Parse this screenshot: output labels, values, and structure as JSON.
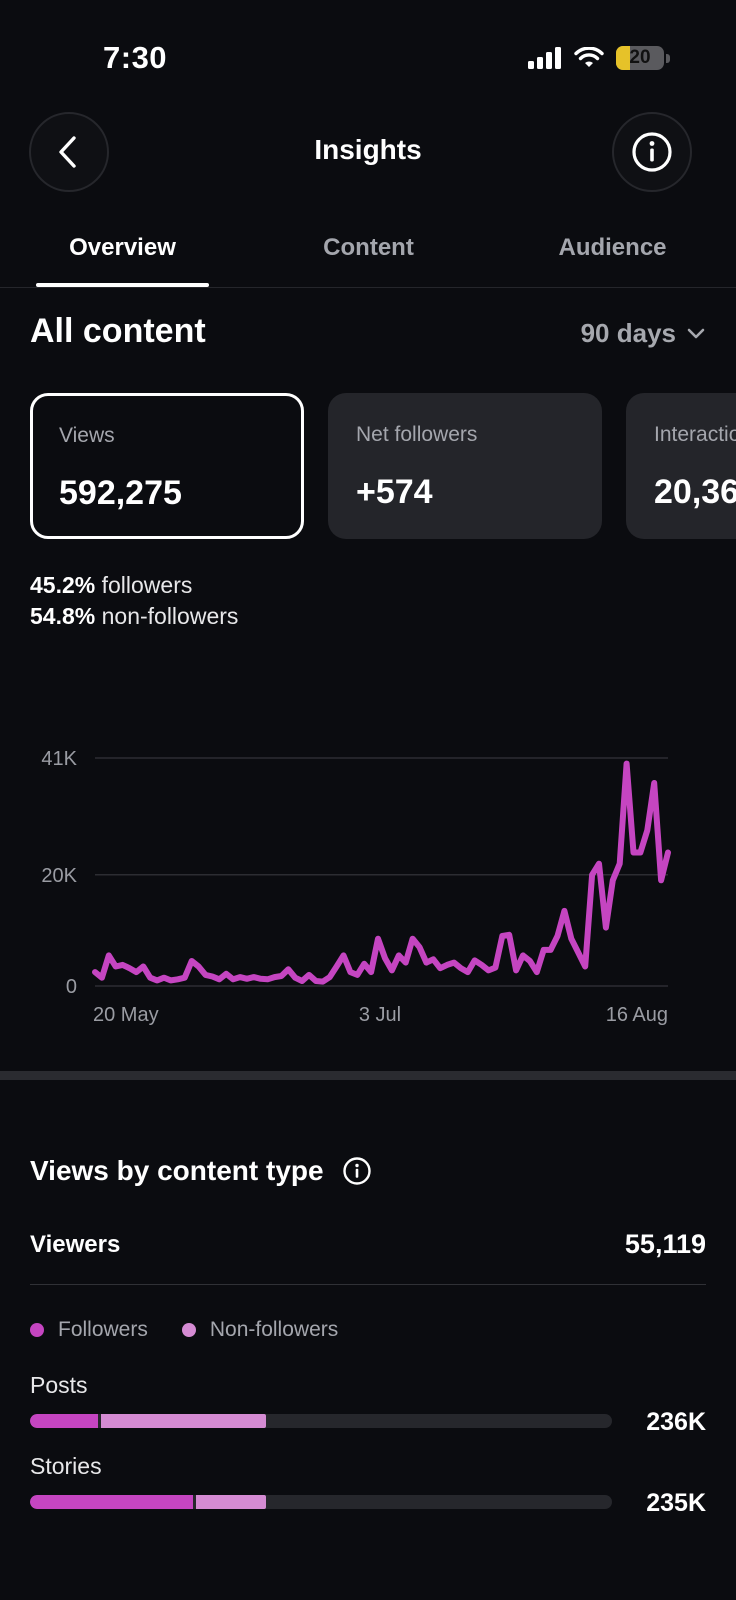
{
  "status_bar": {
    "time": "7:30",
    "battery": "20"
  },
  "nav": {
    "title": "Insights"
  },
  "tabs": [
    {
      "label": "Overview",
      "active": true
    },
    {
      "label": "Content",
      "active": false
    },
    {
      "label": "Audience",
      "active": false
    }
  ],
  "section": {
    "title": "All content",
    "range": "90 days"
  },
  "metrics": [
    {
      "label": "Views",
      "value": "592,275",
      "selected": true
    },
    {
      "label": "Net followers",
      "value": "+574",
      "selected": false
    },
    {
      "label": "Interactions",
      "value": "20,36",
      "selected": false
    }
  ],
  "split": {
    "followers_pct": "45.2%",
    "followers_label": "followers",
    "nonfollowers_pct": "54.8%",
    "nonfollowers_label": "non-followers"
  },
  "chart_data": {
    "type": "line",
    "x_tick_labels": [
      "20 May",
      "3 Jul",
      "16 Aug"
    ],
    "y_tick_labels": [
      "41K",
      "20K",
      "0"
    ],
    "ylim": [
      0,
      41000
    ],
    "grid": true,
    "color": "#c545c1",
    "series": [
      {
        "values": [
          2500,
          1500,
          5500,
          3500,
          3800,
          3200,
          2500,
          3500,
          1500,
          1000,
          1500,
          1000,
          1200,
          1500,
          4500,
          3500,
          2000,
          1700,
          1200,
          2200,
          1200,
          1600,
          1300,
          1600,
          1300,
          1200,
          1600,
          1800,
          3000,
          1500,
          900,
          2000,
          900,
          800,
          1600,
          3500,
          5500,
          2500,
          2000,
          4000,
          2500,
          8500,
          5000,
          2800,
          5500,
          4200,
          8500,
          7000,
          4200,
          4800,
          3200,
          3800,
          4200,
          3200,
          2500,
          4600,
          3800,
          2800,
          3300,
          9000,
          9200,
          2800,
          5500,
          4500,
          2500,
          6500,
          6500,
          9000,
          13500,
          8500,
          6000,
          3500,
          20000,
          22000,
          10500,
          19000,
          22000,
          40000,
          24000,
          24000,
          28000,
          36500,
          19000,
          24000
        ]
      }
    ]
  },
  "views_by_type": {
    "title": "Views by content type",
    "viewers_label": "Viewers",
    "viewers_value": "55,119",
    "legend": [
      {
        "label": "Followers",
        "color": "#c545c1"
      },
      {
        "label": "Non-followers",
        "color": "#d58bd3"
      }
    ],
    "rows": [
      {
        "label": "Posts",
        "value": "236K",
        "followers_frac": 0.116,
        "nonfollowers_frac": 0.29
      },
      {
        "label": "Stories",
        "value": "235K",
        "followers_frac": 0.28,
        "nonfollowers_frac": 0.125
      }
    ]
  }
}
